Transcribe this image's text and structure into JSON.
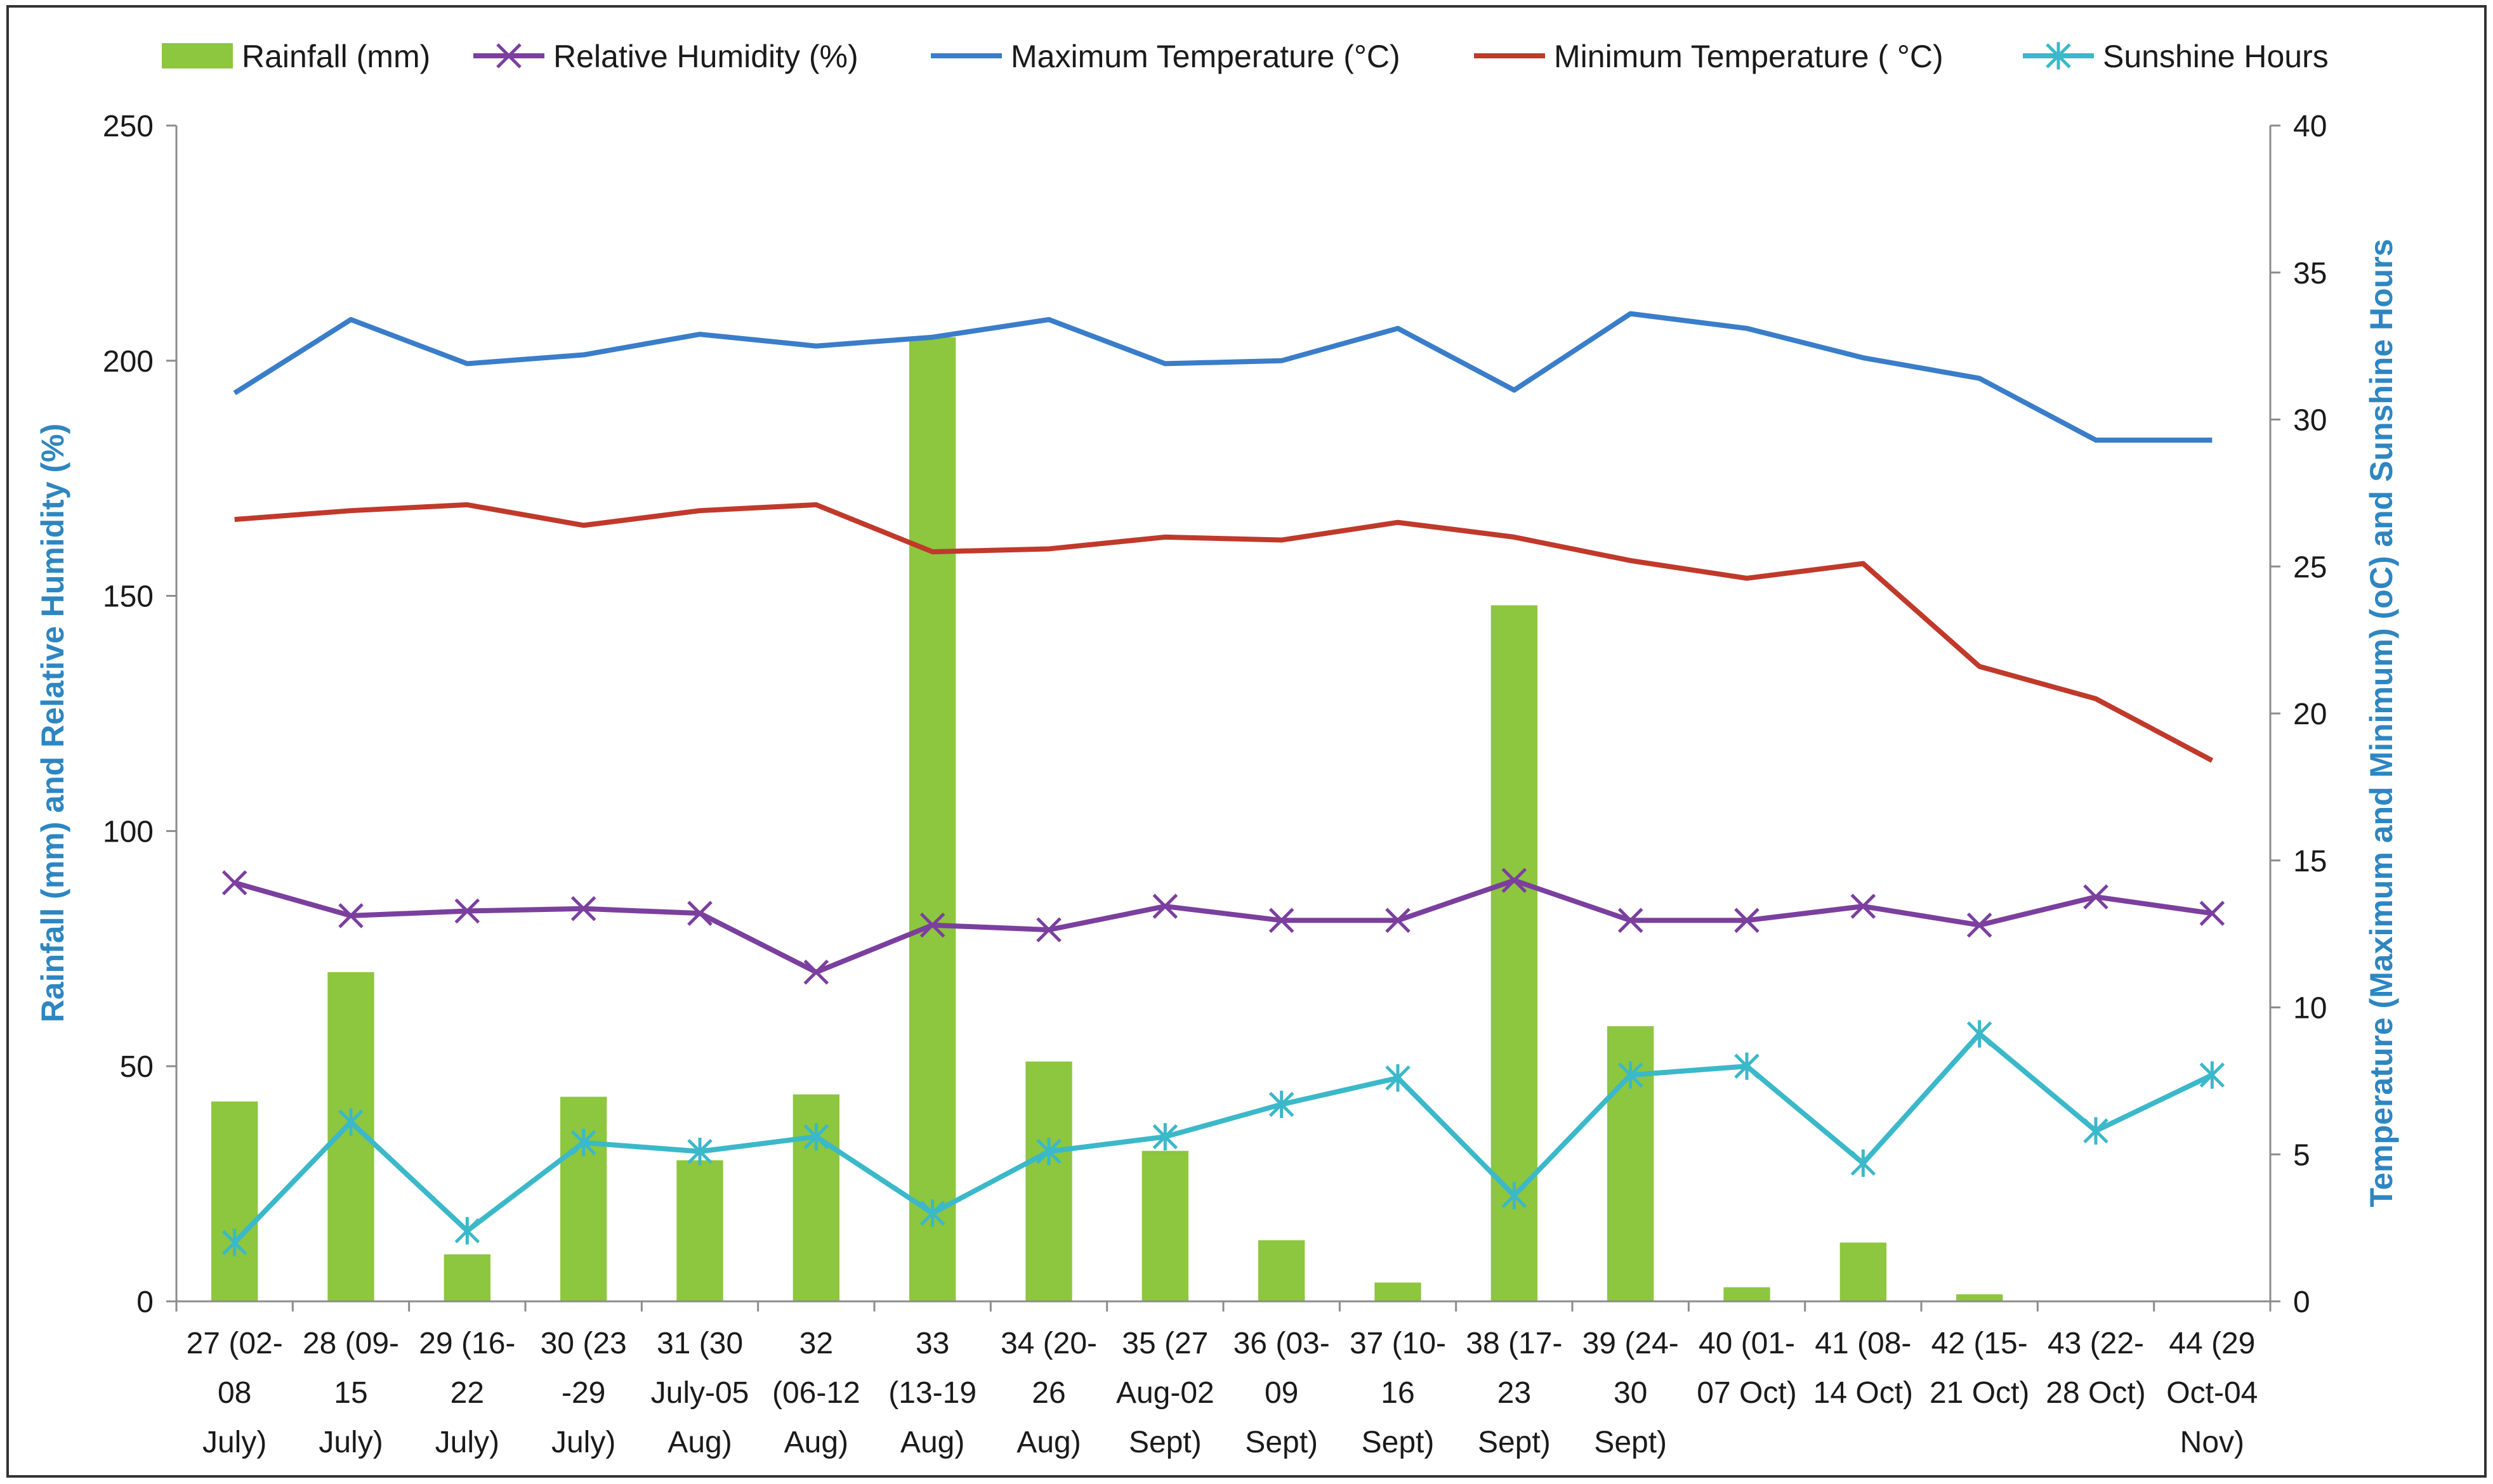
{
  "chart_data": {
    "type": "bar",
    "categories": [
      [
        "27 (02-",
        "08",
        "July)"
      ],
      [
        "28 (09-",
        "15",
        "July)"
      ],
      [
        "29 (16-",
        "22",
        "July)"
      ],
      [
        "30 (23",
        "-29",
        "July)"
      ],
      [
        "31 (30",
        "July-05",
        "Aug)"
      ],
      [
        "32",
        "(06-12",
        "Aug)"
      ],
      [
        "33",
        "(13-19",
        "Aug)"
      ],
      [
        "34 (20-",
        "26",
        "Aug)"
      ],
      [
        "35 (27",
        "Aug-02",
        "Sept)"
      ],
      [
        "36 (03-",
        "09",
        "Sept)"
      ],
      [
        "37 (10-",
        "16",
        "Sept)"
      ],
      [
        "38 (17-",
        "23",
        "Sept)"
      ],
      [
        "39 (24-",
        "30",
        "Sept)"
      ],
      [
        "40 (01-",
        "07 Oct)",
        ""
      ],
      [
        "41 (08-",
        "14 Oct)",
        ""
      ],
      [
        "42 (15-",
        "21 Oct)",
        ""
      ],
      [
        "43 (22-",
        "28 Oct)",
        ""
      ],
      [
        "44 (29",
        "Oct-04",
        "Nov)"
      ]
    ],
    "series": [
      {
        "name": "Rainfall (mm)",
        "kind": "bar",
        "axis": "left",
        "color": "#8dc63f",
        "values": [
          42.5,
          70,
          10,
          43.5,
          30,
          44,
          205,
          51,
          32,
          13,
          4,
          148,
          58.5,
          3,
          12.5,
          1.5,
          0,
          0
        ]
      },
      {
        "name": "Relative Humidity (%)",
        "kind": "line",
        "marker": "x",
        "axis": "left",
        "color": "#7b3f9e",
        "values": [
          89,
          82,
          83,
          83.5,
          82.5,
          70,
          80,
          79,
          84,
          81,
          81,
          89.5,
          81,
          81,
          84,
          80,
          86,
          82.5
        ]
      },
      {
        "name": "Maximum Temperature (°C)",
        "kind": "line",
        "axis": "right",
        "color": "#3a7dc9",
        "values": [
          30.9,
          33.4,
          31.9,
          32.2,
          32.9,
          32.5,
          32.8,
          33.4,
          31.9,
          32.0,
          33.1,
          31.0,
          33.6,
          33.1,
          32.1,
          31.4,
          29.3,
          29.3
        ]
      },
      {
        "name": "Minimum Temperature ( °C)",
        "kind": "line",
        "axis": "right",
        "color": "#c0392b",
        "values": [
          26.6,
          26.9,
          27.1,
          26.4,
          26.9,
          27.1,
          25.5,
          25.6,
          26.0,
          25.9,
          26.5,
          26.0,
          25.2,
          24.6,
          25.1,
          21.6,
          20.5,
          18.4
        ]
      },
      {
        "name": "Sunshine Hours",
        "kind": "line",
        "marker": "star",
        "axis": "right",
        "color": "#3bb8c9",
        "values": [
          2.0,
          6.1,
          2.4,
          5.4,
          5.1,
          5.6,
          3.0,
          5.1,
          5.6,
          6.7,
          7.6,
          3.6,
          7.7,
          8.0,
          4.7,
          9.1,
          5.8,
          7.7
        ]
      }
    ],
    "ylabel": "Rainfall (mm) and Relative Humidity (%)",
    "ylabel_color": "#2e86c1",
    "ylim": [
      0,
      250
    ],
    "yticks": [
      0,
      50,
      100,
      150,
      200,
      250
    ],
    "y2label": "Temperature (Maximum and Minimum) (oC) and Sunshine Hours",
    "y2label_color": "#2e86c1",
    "y2lim": [
      0,
      40
    ],
    "y2ticks": [
      0,
      5,
      10,
      15,
      20,
      25,
      30,
      35,
      40
    ],
    "grid": false,
    "legend_position": "top"
  }
}
